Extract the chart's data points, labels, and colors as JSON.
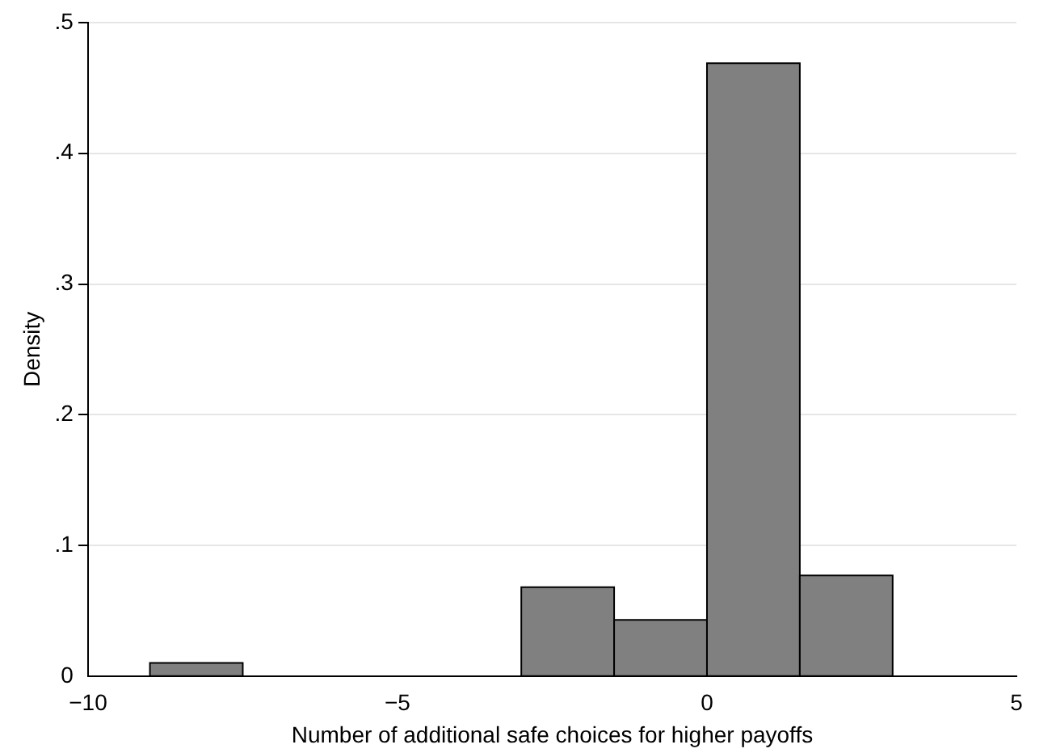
{
  "chart_data": {
    "type": "histogram",
    "xlabel": "Number of additional safe choices for higher payoffs",
    "ylabel": "Density",
    "bins": [
      -9,
      -7.5,
      -3,
      -1.5,
      0,
      1.5,
      3
    ],
    "values": [
      0.01,
      0,
      0.068,
      0.043,
      0.469,
      0.077
    ],
    "color": "#808080",
    "xlim": [
      -10,
      5
    ],
    "xticks": [
      {
        "value": -10,
        "label": "−10"
      },
      {
        "value": -5,
        "label": "−5"
      },
      0,
      5
    ],
    "ylim": [
      0,
      0.5
    ],
    "yticks": [
      0,
      {
        "value": 0.1,
        "label": ".1"
      },
      {
        "value": 0.2,
        "label": ".2"
      },
      {
        "value": 0.3,
        "label": ".3"
      },
      {
        "value": 0.4,
        "label": ".4"
      },
      {
        "value": 0.5,
        "label": ".5"
      }
    ],
    "grid": "y"
  }
}
